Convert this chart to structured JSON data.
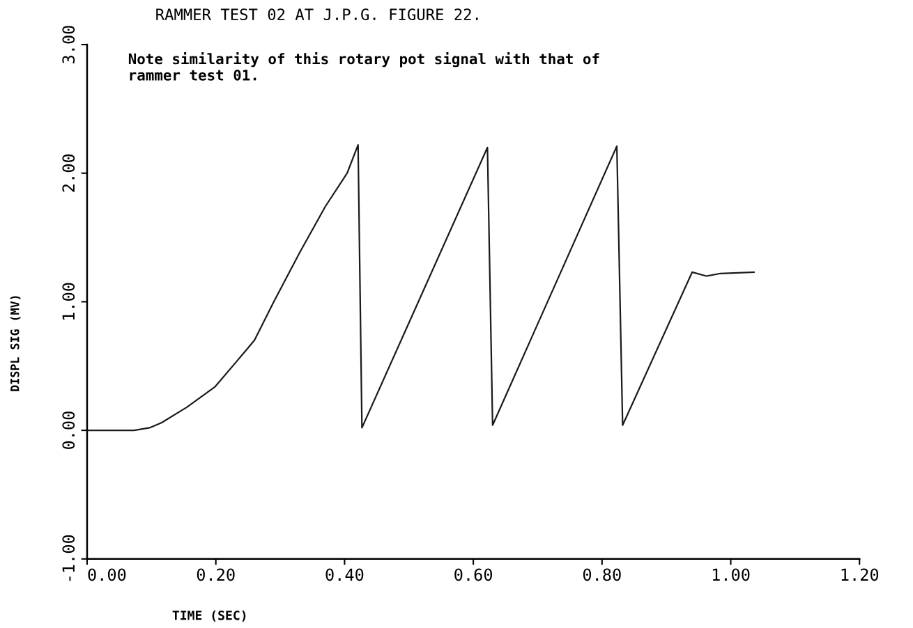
{
  "chart_data": {
    "type": "line",
    "title": "RAMMER TEST 02 AT J.P.G. FIGURE 22.",
    "xlabel": "TIME (SEC)",
    "ylabel": "DISPL SIG (MV)",
    "annotations": [
      "Note similarity of this rotary pot signal with that of\nrammer test 01."
    ],
    "x": [
      0.0,
      0.073,
      0.097,
      0.116,
      0.155,
      0.199,
      0.233,
      0.26,
      0.29,
      0.33,
      0.37,
      0.404,
      0.421,
      0.427,
      0.622,
      0.63,
      0.823,
      0.832,
      0.94,
      0.962,
      0.984,
      1.036
    ],
    "series": [
      {
        "color": "#1a1a1a",
        "values": [
          0.0,
          0.0,
          0.02,
          0.06,
          0.18,
          0.34,
          0.54,
          0.7,
          1.0,
          1.38,
          1.74,
          2.0,
          2.22,
          0.02,
          2.2,
          0.04,
          2.21,
          0.04,
          1.23,
          1.2,
          1.22,
          1.23
        ]
      }
    ],
    "xlim": [
      0,
      1.2
    ],
    "ylim": [
      -1,
      3
    ],
    "xticks": [
      {
        "value": 0,
        "label": "0.00"
      },
      {
        "value": 0.2,
        "label": "0.20"
      },
      {
        "value": 0.4,
        "label": "0.40"
      },
      {
        "value": 0.6,
        "label": "0.60"
      },
      {
        "value": 0.8,
        "label": "0.80"
      },
      {
        "value": 1.0,
        "label": "1.00"
      },
      {
        "value": 1.2,
        "label": "1.20"
      }
    ],
    "yticks": [
      {
        "value": -1,
        "label": "-1.00"
      },
      {
        "value": 0,
        "label": "0.00"
      },
      {
        "value": 1,
        "label": "1.00"
      },
      {
        "value": 2,
        "label": "2.00"
      },
      {
        "value": 3,
        "label": "3.00"
      }
    ],
    "grid": false,
    "marker": "none",
    "line_style": "solid"
  }
}
